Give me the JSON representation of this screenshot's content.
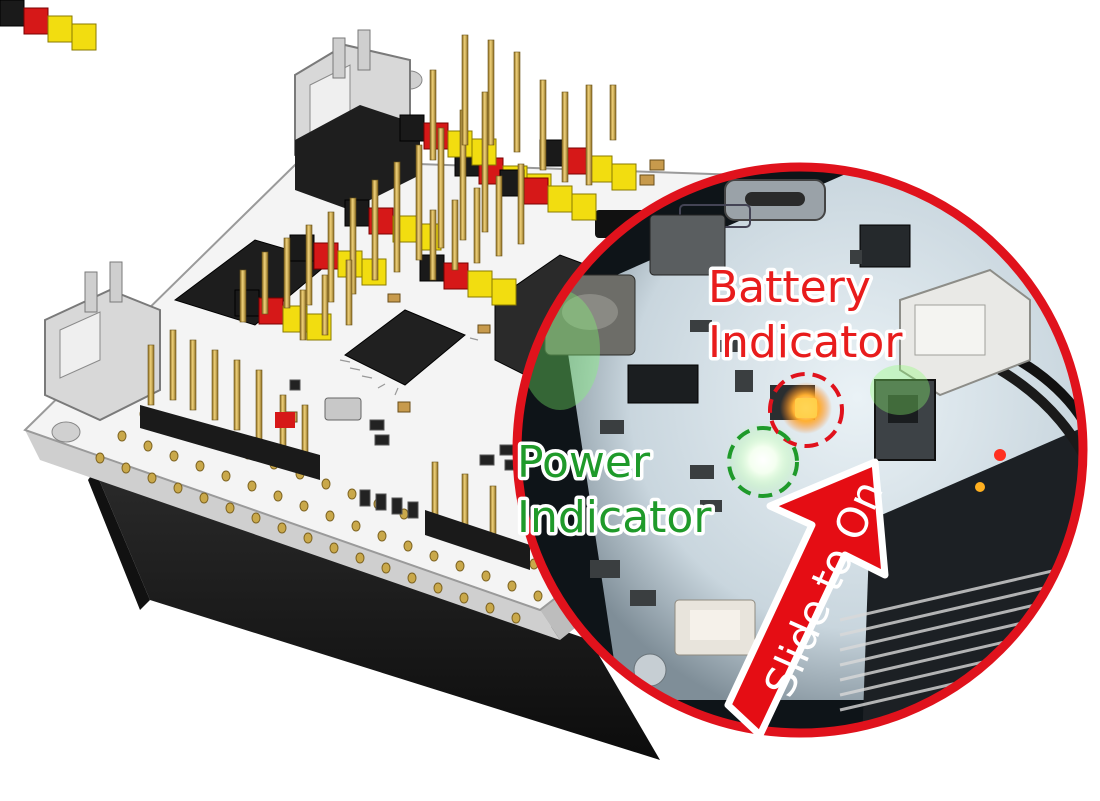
{
  "labels": {
    "battery_line1": "Battery",
    "battery_line2": "Indicator",
    "power_line1": "Power",
    "power_line2": "Indicator",
    "slide_arrow": "Slide to On"
  },
  "colors": {
    "label_red": "#e81c1c",
    "label_green": "#1f9a2a",
    "zoom_ring": "#e0121c",
    "arrow_fill": "#e50d14",
    "header_yellow": "#f2dd10",
    "header_red": "#d61818",
    "header_black": "#1a1a1a",
    "pin_gold": "#c9a84a",
    "board_white": "#f4f4f4",
    "pcb_light": "#d9e4ea"
  },
  "icons": {
    "battery_led": "orange-led-icon",
    "power_led": "green-led-icon"
  }
}
